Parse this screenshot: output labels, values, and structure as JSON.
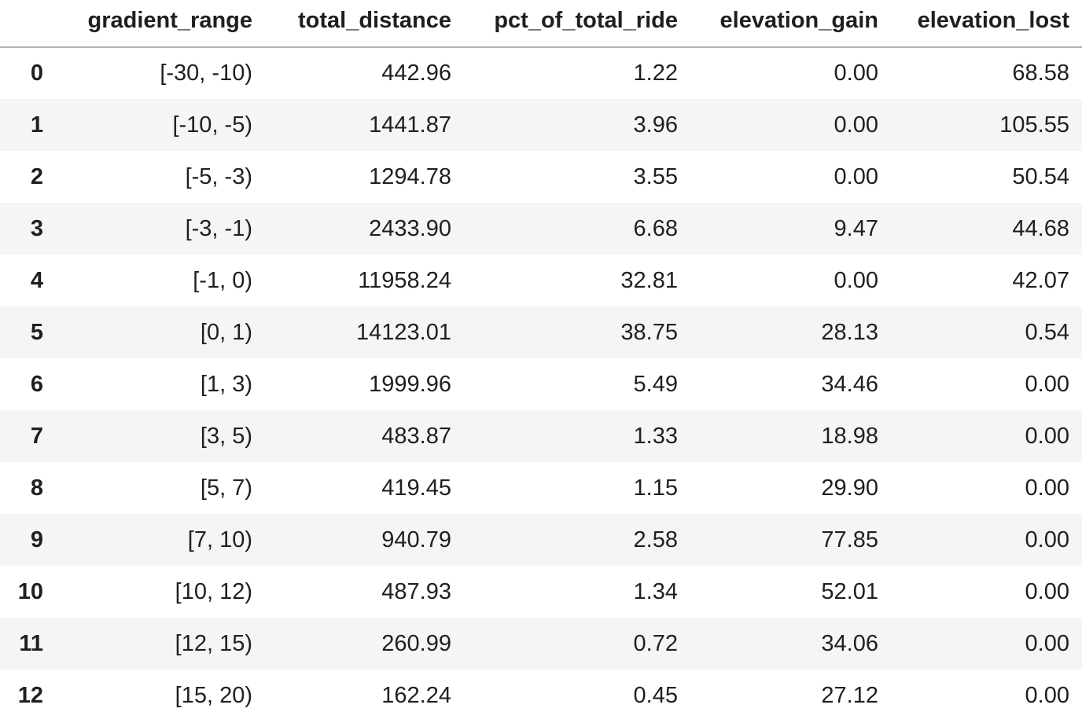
{
  "chart_data": {
    "type": "table",
    "columns": [
      "",
      "gradient_range",
      "total_distance",
      "pct_of_total_ride",
      "elevation_gain",
      "elevation_lost"
    ],
    "rows": [
      [
        "0",
        "[-30, -10)",
        "442.96",
        "1.22",
        "0.00",
        "68.58"
      ],
      [
        "1",
        "[-10, -5)",
        "1441.87",
        "3.96",
        "0.00",
        "105.55"
      ],
      [
        "2",
        "[-5, -3)",
        "1294.78",
        "3.55",
        "0.00",
        "50.54"
      ],
      [
        "3",
        "[-3, -1)",
        "2433.90",
        "6.68",
        "9.47",
        "44.68"
      ],
      [
        "4",
        "[-1, 0)",
        "11958.24",
        "32.81",
        "0.00",
        "42.07"
      ],
      [
        "5",
        "[0, 1)",
        "14123.01",
        "38.75",
        "28.13",
        "0.54"
      ],
      [
        "6",
        "[1, 3)",
        "1999.96",
        "5.49",
        "34.46",
        "0.00"
      ],
      [
        "7",
        "[3, 5)",
        "483.87",
        "1.33",
        "18.98",
        "0.00"
      ],
      [
        "8",
        "[5, 7)",
        "419.45",
        "1.15",
        "29.90",
        "0.00"
      ],
      [
        "9",
        "[7, 10)",
        "940.79",
        "2.58",
        "77.85",
        "0.00"
      ],
      [
        "10",
        "[10, 12)",
        "487.93",
        "1.34",
        "52.01",
        "0.00"
      ],
      [
        "11",
        "[12, 15)",
        "260.99",
        "0.72",
        "34.06",
        "0.00"
      ],
      [
        "12",
        "[15, 20)",
        "162.24",
        "0.45",
        "27.12",
        "0.00"
      ]
    ],
    "layout": {
      "striped_rows": "odd-indices",
      "alignment": "right",
      "header_rule": true
    },
    "colors": {
      "background": "#ffffff",
      "stripe": "#f5f5f5",
      "text": "#1f1f1f",
      "header_rule": "#b2b2b2"
    }
  }
}
